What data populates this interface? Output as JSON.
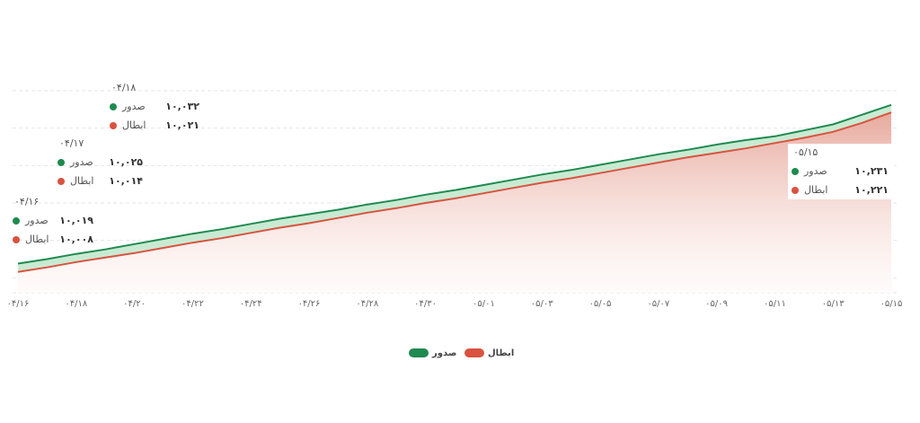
{
  "chart_data": {
    "type": "area",
    "categories": [
      "۰۴/۱۶",
      null,
      "۰۴/۱۸",
      null,
      "۰۴/۲۰",
      null,
      "۰۴/۲۲",
      null,
      "۰۴/۲۴",
      null,
      "۰۴/۲۶",
      null,
      "۰۴/۲۸",
      null,
      "۰۴/۳۰",
      null,
      "۰۵/۰۱",
      null,
      "۰۵/۰۳",
      null,
      "۰۵/۰۵",
      null,
      "۰۵/۰۷",
      null,
      "۰۵/۰۹",
      null,
      "۰۵/۱۱",
      null,
      "۰۵/۱۳",
      null,
      "۰۵/۱۵"
    ],
    "series": [
      {
        "name": "صدور",
        "color": "#1e8a4f",
        "values": [
          10019,
          10025,
          10032,
          10038,
          10045,
          10052,
          10059,
          10065,
          10072,
          10079,
          10085,
          10091,
          10098,
          10104,
          10111,
          10117,
          10124,
          10131,
          10138,
          10144,
          10151,
          10158,
          10165,
          10171,
          10178,
          10184,
          10189,
          10197,
          10205,
          10218,
          10231
        ],
        "value_labels": [
          "۱۰,۰۱۹",
          "۱۰,۰۲۵",
          "۱۰,۰۳۲",
          null,
          null,
          null,
          null,
          null,
          null,
          null,
          null,
          null,
          null,
          null,
          null,
          null,
          null,
          null,
          null,
          null,
          null,
          null,
          null,
          null,
          null,
          null,
          null,
          null,
          null,
          null,
          "۱۰,۲۳۱"
        ]
      },
      {
        "name": "ابطال",
        "color": "#d9533f",
        "values": [
          10008,
          10014,
          10021,
          10027,
          10033,
          10040,
          10047,
          10053,
          10060,
          10067,
          10073,
          10080,
          10087,
          10093,
          10100,
          10106,
          10113,
          10120,
          10127,
          10133,
          10140,
          10147,
          10154,
          10161,
          10167,
          10173,
          10180,
          10187,
          10195,
          10207,
          10221
        ],
        "value_labels": [
          "۱۰,۰۰۸",
          "۱۰,۰۱۴",
          "۱۰,۰۲۱",
          null,
          null,
          null,
          null,
          null,
          null,
          null,
          null,
          null,
          null,
          null,
          null,
          null,
          null,
          null,
          null,
          null,
          null,
          null,
          null,
          null,
          null,
          null,
          null,
          null,
          null,
          null,
          "۱۰,۲۲۱"
        ]
      }
    ],
    "tooltips": [
      {
        "date": "۰۴/۱۶"
      },
      {
        "date": "۰۴/۱۷"
      },
      {
        "date": "۰۴/۱۸"
      },
      {
        "date": "۰۵/۱۵"
      }
    ],
    "ylim": [
      9980,
      10250
    ],
    "yticks": [
      10000,
      10050,
      10100,
      10150,
      10200,
      10250
    ],
    "grid": true
  }
}
